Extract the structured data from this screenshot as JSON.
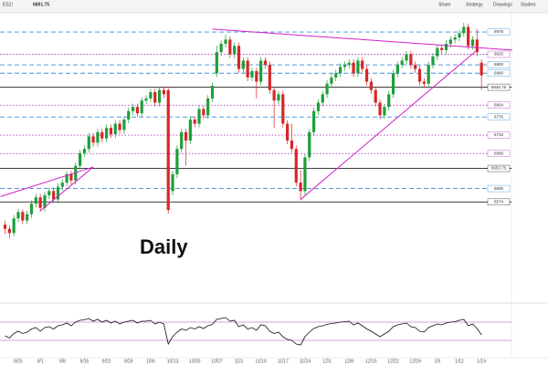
{
  "chart_data": {
    "type": "candlestick",
    "header": {
      "symbol": "ES1!",
      "price": "6891.75",
      "buttons": [
        "Share",
        "Strategy",
        "Drawings",
        "Studies"
      ]
    },
    "annotation": "Daily",
    "categories": [
      null,
      null,
      null,
      "8/25",
      null,
      null,
      null,
      null,
      "9/1",
      null,
      null,
      null,
      null,
      "9/8",
      null,
      null,
      null,
      null,
      "9/15",
      null,
      null,
      null,
      null,
      "9/22",
      null,
      null,
      null,
      null,
      "9/29",
      null,
      null,
      null,
      null,
      "10/6",
      null,
      null,
      null,
      null,
      "10/13",
      null,
      null,
      null,
      null,
      "10/20",
      null,
      null,
      null,
      null,
      "10/27",
      null,
      null,
      null,
      null,
      "11/3",
      null,
      null,
      null,
      null,
      "11/10",
      null,
      null,
      null,
      null,
      "11/17",
      null,
      null,
      null,
      null,
      "11/24",
      null,
      null,
      null,
      null,
      "12/1",
      null,
      null,
      null,
      null,
      "12/8",
      null,
      null,
      null,
      null,
      "12/15",
      null,
      null,
      null,
      null,
      "12/22",
      null,
      null,
      null,
      null,
      "12/29",
      null,
      null,
      null,
      null,
      "1/5",
      null,
      null,
      null,
      null,
      "1/12",
      null,
      null,
      null,
      null,
      "1/19"
    ],
    "ohlc": [
      [
        6520,
        6530,
        6498,
        6510
      ],
      [
        6510,
        6518,
        6488,
        6500
      ],
      [
        6500,
        6543,
        6492,
        6535
      ],
      [
        6535,
        6558,
        6526,
        6550
      ],
      [
        6550,
        6556,
        6521,
        6530
      ],
      [
        6530,
        6553,
        6521,
        6545
      ],
      [
        6545,
        6578,
        6536,
        6570
      ],
      [
        6570,
        6593,
        6561,
        6585
      ],
      [
        6585,
        6593,
        6551,
        6560
      ],
      [
        6560,
        6598,
        6551,
        6590
      ],
      [
        6590,
        6608,
        6581,
        6600
      ],
      [
        6600,
        6608,
        6571,
        6580
      ],
      [
        6580,
        6618,
        6571,
        6610
      ],
      [
        6610,
        6628,
        6601,
        6620
      ],
      [
        6620,
        6648,
        6611,
        6640
      ],
      [
        6640,
        6648,
        6616,
        6625
      ],
      [
        6625,
        6668,
        6616,
        6660
      ],
      [
        6660,
        6698,
        6651,
        6690
      ],
      [
        6690,
        6708,
        6681,
        6700
      ],
      [
        6700,
        6738,
        6691,
        6730
      ],
      [
        6730,
        6738,
        6706,
        6715
      ],
      [
        6715,
        6748,
        6706,
        6740
      ],
      [
        6740,
        6748,
        6716,
        6725
      ],
      [
        6725,
        6758,
        6716,
        6750
      ],
      [
        6750,
        6758,
        6726,
        6735
      ],
      [
        6735,
        6768,
        6726,
        6760
      ],
      [
        6760,
        6768,
        6736,
        6745
      ],
      [
        6745,
        6778,
        6736,
        6770
      ],
      [
        6770,
        6798,
        6761,
        6790
      ],
      [
        6790,
        6808,
        6781,
        6800
      ],
      [
        6800,
        6808,
        6776,
        6785
      ],
      [
        6785,
        6823,
        6776,
        6815
      ],
      [
        6815,
        6828,
        6806,
        6820
      ],
      [
        6820,
        6843,
        6811,
        6835
      ],
      [
        6835,
        6843,
        6801,
        6810
      ],
      [
        6810,
        6848,
        6801,
        6840
      ],
      [
        6840,
        6848,
        6821,
        6830
      ],
      [
        6840,
        6848,
        6546,
        6555
      ],
      [
        6600,
        6648,
        6590,
        6640
      ],
      [
        6640,
        6708,
        6631,
        6700
      ],
      [
        6700,
        6748,
        6691,
        6740
      ],
      [
        6740,
        6748,
        6660,
        6720
      ],
      [
        6720,
        6778,
        6711,
        6770
      ],
      [
        6770,
        6778,
        6751,
        6760
      ],
      [
        6760,
        6803,
        6751,
        6795
      ],
      [
        6795,
        6803,
        6771,
        6780
      ],
      [
        6780,
        6828,
        6771,
        6820
      ],
      [
        6820,
        6858,
        6811,
        6850
      ],
      [
        6880,
        6945,
        6871,
        6930
      ],
      [
        6930,
        6958,
        6921,
        6950
      ],
      [
        6950,
        6972,
        6941,
        6960
      ],
      [
        6960,
        6968,
        6916,
        6925
      ],
      [
        6925,
        6953,
        6916,
        6945
      ],
      [
        6945,
        6953,
        6881,
        6890
      ],
      [
        6890,
        6918,
        6881,
        6910
      ],
      [
        6910,
        6918,
        6861,
        6870
      ],
      [
        6870,
        6893,
        6861,
        6885
      ],
      [
        6885,
        6893,
        6820,
        6860
      ],
      [
        6860,
        6918,
        6851,
        6910
      ],
      [
        6910,
        6918,
        6891,
        6900
      ],
      [
        6900,
        6908,
        6831,
        6840
      ],
      [
        6840,
        6848,
        6750,
        6815
      ],
      [
        6815,
        6838,
        6806,
        6830
      ],
      [
        6830,
        6838,
        6751,
        6760
      ],
      [
        6760,
        6768,
        6711,
        6720
      ],
      [
        6720,
        6760,
        6691,
        6700
      ],
      [
        6700,
        6708,
        6611,
        6620
      ],
      [
        6620,
        6650,
        6578,
        6600
      ],
      [
        6600,
        6688,
        6591,
        6680
      ],
      [
        6680,
        6748,
        6671,
        6740
      ],
      [
        6740,
        6798,
        6731,
        6790
      ],
      [
        6790,
        6818,
        6781,
        6810
      ],
      [
        6810,
        6838,
        6801,
        6830
      ],
      [
        6830,
        6863,
        6821,
        6855
      ],
      [
        6855,
        6878,
        6846,
        6870
      ],
      [
        6870,
        6888,
        6861,
        6880
      ],
      [
        6880,
        6903,
        6871,
        6895
      ],
      [
        6895,
        6908,
        6886,
        6900
      ],
      [
        6900,
        6913,
        6891,
        6905
      ],
      [
        6905,
        6913,
        6871,
        6880
      ],
      [
        6880,
        6918,
        6871,
        6910
      ],
      [
        6910,
        6918,
        6881,
        6890
      ],
      [
        6890,
        6898,
        6851,
        6860
      ],
      [
        6860,
        6868,
        6831,
        6840
      ],
      [
        6840,
        6848,
        6801,
        6810
      ],
      [
        6810,
        6818,
        6771,
        6780
      ],
      [
        6780,
        6808,
        6771,
        6800
      ],
      [
        6800,
        6838,
        6791,
        6830
      ],
      [
        6830,
        6888,
        6821,
        6880
      ],
      [
        6880,
        6908,
        6871,
        6900
      ],
      [
        6900,
        6918,
        6891,
        6910
      ],
      [
        6910,
        6933,
        6901,
        6925
      ],
      [
        6925,
        6933,
        6891,
        6900
      ],
      [
        6900,
        6908,
        6881,
        6890
      ],
      [
        6890,
        6898,
        6851,
        6860
      ],
      [
        6860,
        6868,
        6846,
        6855
      ],
      [
        6855,
        6908,
        6846,
        6900
      ],
      [
        6900,
        6928,
        6891,
        6920
      ],
      [
        6920,
        6948,
        6911,
        6940
      ],
      [
        6940,
        6948,
        6926,
        6935
      ],
      [
        6935,
        6958,
        6926,
        6950
      ],
      [
        6950,
        6968,
        6941,
        6960
      ],
      [
        6960,
        6973,
        6951,
        6965
      ],
      [
        6965,
        6983,
        6956,
        6975
      ],
      [
        6975,
        7000,
        6966,
        6990
      ],
      [
        6990,
        6998,
        6936,
        6945
      ],
      [
        6945,
        6968,
        6936,
        6960
      ],
      [
        6960,
        6985,
        6921,
        6930
      ],
      [
        6905,
        6913,
        6840,
        6875
      ]
    ],
    "up_color": "#1e9e3a",
    "down_color": "#d62728",
    "ylim": [
      6360,
      7015
    ],
    "levels": [
      {
        "value": 6978,
        "label": "6978",
        "style": "dashed",
        "color": "#3a8fd6"
      },
      {
        "value": 6925,
        "label": "6925",
        "style": "dotted",
        "color": "#b040c0"
      },
      {
        "value": 6900,
        "label": "6900",
        "style": "dashed",
        "color": "#3a8fd6"
      },
      {
        "value": 6880,
        "label": "6880",
        "style": "dashed",
        "color": "#3a8fd6"
      },
      {
        "value": 6846.75,
        "label": "6846.75",
        "style": "solid",
        "color": "#222222"
      },
      {
        "value": 6804,
        "label": "6804",
        "style": "dotted",
        "color": "#b040c0"
      },
      {
        "value": 6776,
        "label": "6776",
        "style": "dashed",
        "color": "#3a8fd6"
      },
      {
        "value": 6733,
        "label": "6733",
        "style": "dotted",
        "color": "#b040c0"
      },
      {
        "value": 6689,
        "label": "6689",
        "style": "dotted",
        "color": "#b040c0"
      },
      {
        "value": 6653.75,
        "label": "6653.75",
        "style": "solid",
        "color": "#222222"
      },
      {
        "value": 6606,
        "label": "6606",
        "style": "dashed",
        "color": "#3a8fd6"
      },
      {
        "value": 6574,
        "label": "6574",
        "style": "solid",
        "color": "#222222"
      }
    ],
    "trendlines": [
      {
        "from": [
          47,
          6985
        ],
        "to": [
          115,
          6935
        ],
        "color": "#d020c8"
      },
      {
        "from": [
          67,
          6580
        ],
        "to": [
          107,
          6935
        ],
        "color": "#d020c8"
      },
      {
        "from": [
          -1,
          6587
        ],
        "to": [
          20,
          6657
        ],
        "color": "#d020c8"
      },
      {
        "from": [
          8,
          6553
        ],
        "to": [
          20,
          6657
        ],
        "color": "#d020c8"
      }
    ],
    "rsi": {
      "ylim": [
        0,
        100
      ],
      "levels": [
        70,
        30
      ],
      "color": "#111111",
      "level_color": "#b040c0",
      "values": [
        40,
        35,
        45,
        50,
        45,
        48,
        55,
        58,
        50,
        58,
        60,
        55,
        62,
        64,
        68,
        62,
        70,
        74,
        75,
        78,
        72,
        76,
        70,
        74,
        68,
        72,
        66,
        70,
        72,
        74,
        68,
        72,
        72,
        74,
        66,
        70,
        66,
        22,
        38,
        48,
        55,
        52,
        58,
        55,
        60,
        56,
        62,
        65,
        76,
        78,
        80,
        72,
        74,
        60,
        64,
        55,
        58,
        52,
        64,
        62,
        50,
        45,
        48,
        38,
        32,
        30,
        22,
        20,
        38,
        48,
        56,
        60,
        62,
        65,
        67,
        68,
        70,
        71,
        72,
        64,
        68,
        62,
        55,
        50,
        44,
        38,
        44,
        50,
        60,
        64,
        66,
        68,
        60,
        58,
        50,
        48,
        58,
        62,
        66,
        64,
        68,
        70,
        71,
        74,
        76,
        62,
        66,
        56,
        42
      ]
    }
  }
}
